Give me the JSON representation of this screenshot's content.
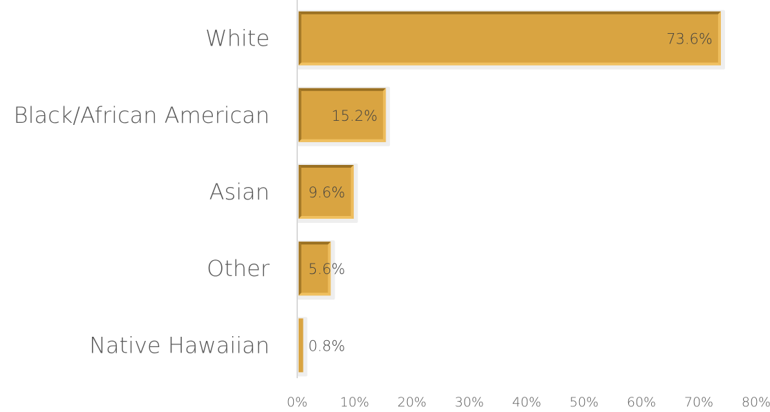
{
  "chart_data": {
    "type": "bar",
    "orientation": "horizontal",
    "title": "",
    "xlabel": "",
    "ylabel": "",
    "categories": [
      "White",
      "Black/African American",
      "Asian",
      "Other",
      "Native Hawaiian"
    ],
    "values": [
      73.6,
      15.2,
      9.6,
      5.6,
      0.8
    ],
    "data_labels": [
      "73.6%",
      "15.2%",
      "9.6%",
      "5.6%",
      "0.8%"
    ],
    "xlim": [
      0,
      80
    ],
    "x_ticks": [
      0,
      10,
      20,
      30,
      40,
      50,
      60,
      70,
      80
    ],
    "x_tick_labels": [
      "0%",
      "10%",
      "20%",
      "30%",
      "40%",
      "50%",
      "60%",
      "70%",
      "80%"
    ],
    "grid": false,
    "legend": "none",
    "colors": {
      "bar": "#d9a441",
      "bar_bevel_light": "#f0c060",
      "bar_bevel_dark": "#9a7022",
      "bar_shadow": "#eeeeee",
      "axis": "#d9d9d9"
    }
  }
}
